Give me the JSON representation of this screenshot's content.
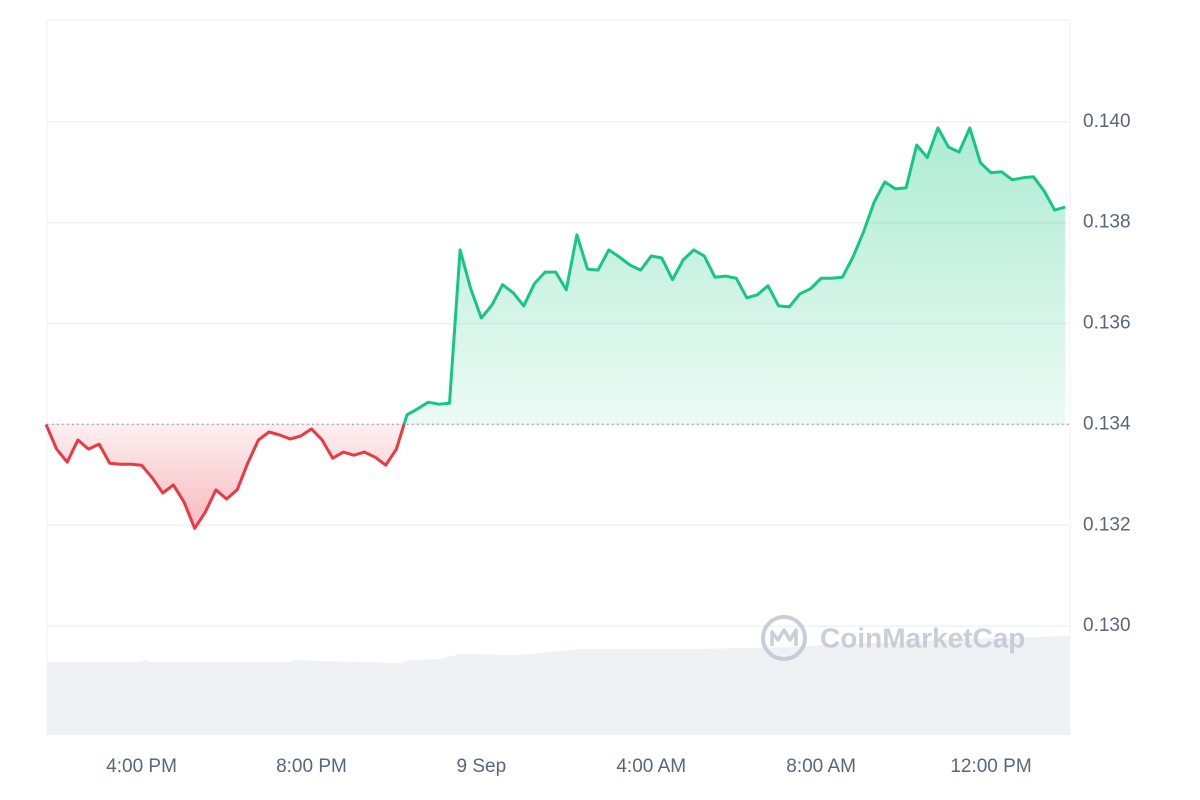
{
  "chart_data": {
    "type": "line",
    "watermark": "CoinMarketCap",
    "baseline": 0.134,
    "up_color": "#16c784",
    "down_color": "#ea3943",
    "grid": true,
    "xlim": [
      -10.25,
      13.86
    ],
    "xticks": [
      {
        "value": -8,
        "label": "4:00 PM"
      },
      {
        "value": -4,
        "label": "8:00 PM"
      },
      {
        "value": 0,
        "label": "9 Sep"
      },
      {
        "value": 4,
        "label": "4:00 AM"
      },
      {
        "value": 8,
        "label": "8:00 AM"
      },
      {
        "value": 12,
        "label": "12:00 PM"
      }
    ],
    "ylim": [
      0.12784,
      0.14202
    ],
    "yticks": [
      {
        "value": 0.13,
        "label": "0.130"
      },
      0.132,
      0.134,
      0.136,
      0.138,
      {
        "value": 0.14,
        "label": "0.140"
      }
    ],
    "x": [
      -10.25,
      -10,
      -9.75,
      -9.5,
      -9.25,
      -9,
      -8.75,
      -8.5,
      -8.25,
      -8,
      -7.75,
      -7.5,
      -7.25,
      -7,
      -6.75,
      -6.5,
      -6.25,
      -6,
      -5.75,
      -5.5,
      -5.25,
      -5,
      -4.75,
      -4.5,
      -4.25,
      -4,
      -3.75,
      -3.5,
      -3.25,
      -3,
      -2.75,
      -2.5,
      -2.25,
      -2,
      -1.75,
      -1.5,
      -1.25,
      -1,
      -0.75,
      -0.5,
      -0.25,
      0,
      0.25,
      0.5,
      0.75,
      1,
      1.25,
      1.5,
      1.75,
      2,
      2.25,
      2.5,
      2.75,
      3,
      3.25,
      3.5,
      3.75,
      4,
      4.25,
      4.5,
      4.75,
      5,
      5.25,
      5.5,
      5.75,
      6,
      6.25,
      6.5,
      6.75,
      7,
      7.25,
      7.5,
      7.75,
      8,
      8.25,
      8.5,
      8.75,
      9,
      9.25,
      9.5,
      9.75,
      10,
      10.25,
      10.5,
      10.75,
      11,
      11.25,
      11.5,
      11.75,
      12,
      12.25,
      12.5,
      12.75,
      13,
      13.25,
      13.5,
      13.75
    ],
    "values": [
      0.134,
      0.13351,
      0.13325,
      0.13369,
      0.13351,
      0.13361,
      0.13323,
      0.13321,
      0.13321,
      0.13319,
      0.13294,
      0.13264,
      0.1328,
      0.13246,
      0.13194,
      0.13226,
      0.1327,
      0.13252,
      0.1327,
      0.13323,
      0.13369,
      0.13385,
      0.13379,
      0.13371,
      0.13377,
      0.13391,
      0.13369,
      0.13333,
      0.13345,
      0.13339,
      0.13345,
      0.13335,
      0.13319,
      0.13351,
      0.13419,
      0.13431,
      0.13444,
      0.1344,
      0.13442,
      0.13746,
      0.13669,
      0.13611,
      0.13637,
      0.13677,
      0.13661,
      0.13635,
      0.13679,
      0.13702,
      0.13702,
      0.13667,
      0.13776,
      0.13708,
      0.13706,
      0.13746,
      0.13732,
      0.13716,
      0.13706,
      0.13734,
      0.1373,
      0.13687,
      0.13726,
      0.13746,
      0.13734,
      0.13692,
      0.13694,
      0.1369,
      0.13651,
      0.13657,
      0.13675,
      0.13635,
      0.13633,
      0.13659,
      0.13669,
      0.1369,
      0.1369,
      0.13692,
      0.13732,
      0.13782,
      0.13841,
      0.13881,
      0.13867,
      0.13869,
      0.13954,
      0.13929,
      0.13988,
      0.1395,
      0.1394,
      0.13988,
      0.13919,
      0.13899,
      0.13901,
      0.13885,
      0.13889,
      0.13891,
      0.13863,
      0.13825,
      0.13831
    ]
  }
}
